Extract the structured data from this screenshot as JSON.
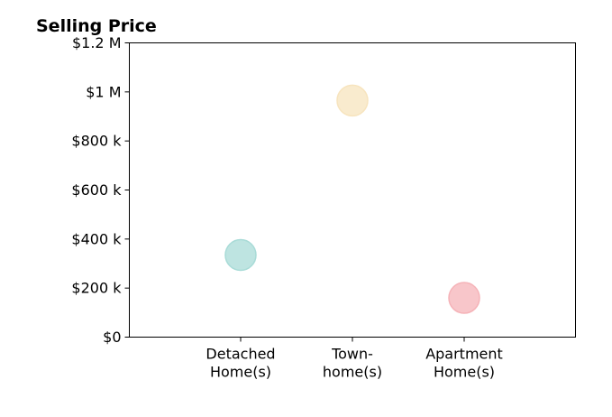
{
  "chart_data": {
    "type": "scatter",
    "title": "Selling Price",
    "xlabel": "",
    "ylabel": "",
    "ylim": [
      0,
      1200000
    ],
    "y_ticks": [
      {
        "value": 0,
        "label": "$0"
      },
      {
        "value": 200000,
        "label": "$200 k"
      },
      {
        "value": 400000,
        "label": "$400 k"
      },
      {
        "value": 600000,
        "label": "$600 k"
      },
      {
        "value": 800000,
        "label": "$800 k"
      },
      {
        "value": 1000000,
        "label": "$1 M"
      },
      {
        "value": 1200000,
        "label": "$1.2 M"
      }
    ],
    "categories": [
      {
        "lines": [
          "Detached",
          "Home(s)"
        ]
      },
      {
        "lines": [
          "Town-",
          "home(s)"
        ]
      },
      {
        "lines": [
          "Apartment",
          "Home(s)"
        ]
      }
    ],
    "points": [
      {
        "category_index": 0,
        "value": 335000,
        "color": "#a8dbd7"
      },
      {
        "category_index": 1,
        "value": 965000,
        "color": "#f7e4be"
      },
      {
        "category_index": 2,
        "value": 160000,
        "color": "#f5b3b8"
      }
    ],
    "grid": false,
    "legend": "none"
  }
}
